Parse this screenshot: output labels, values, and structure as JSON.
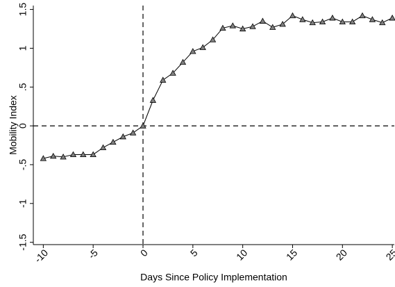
{
  "chart_data": {
    "type": "line",
    "x_label": "Days Since Policy Implementation",
    "y_label": "Mobility Index",
    "x": [
      -10,
      -9,
      -8,
      -7,
      -6,
      -5,
      -4,
      -3,
      -2,
      -1,
      0,
      1,
      2,
      3,
      4,
      5,
      6,
      7,
      8,
      9,
      10,
      11,
      12,
      13,
      14,
      15,
      16,
      17,
      18,
      19,
      20,
      21,
      22,
      23,
      24,
      25
    ],
    "values": [
      -0.42,
      -0.39,
      -0.4,
      -0.37,
      -0.37,
      -0.37,
      -0.28,
      -0.21,
      -0.14,
      -0.09,
      0,
      0.33,
      0.59,
      0.68,
      0.82,
      0.96,
      1.01,
      1.11,
      1.26,
      1.29,
      1.25,
      1.28,
      1.35,
      1.27,
      1.31,
      1.42,
      1.37,
      1.33,
      1.34,
      1.39,
      1.34,
      1.34,
      1.42,
      1.37,
      1.33,
      1.39
    ],
    "color": "#000000",
    "marker_color": "#808080",
    "xlim": [
      -11,
      25.2
    ],
    "ylim": [
      -1.53,
      1.55
    ],
    "xticks": [
      -10,
      -5,
      0,
      5,
      10,
      15,
      20,
      25
    ],
    "yticks": [
      {
        "value": -1.5,
        "label": "-1.5"
      },
      -1,
      {
        "value": -0.5,
        "label": "-.5"
      },
      0,
      {
        "value": 0.5,
        "label": ".5"
      },
      1,
      {
        "value": 1.5,
        "label": "1.5"
      }
    ],
    "vline": 0,
    "hline": 0
  }
}
